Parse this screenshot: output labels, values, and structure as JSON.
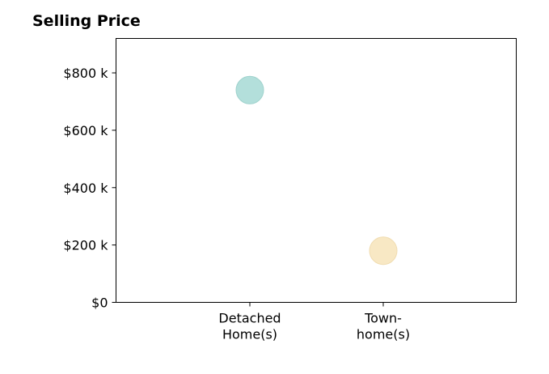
{
  "chart_data": {
    "type": "scatter",
    "title": "Selling Price",
    "xlabel": "",
    "ylabel": "",
    "categories": [
      [
        "Detached",
        "Home(s)"
      ],
      [
        "Town-",
        "home(s)"
      ]
    ],
    "values": [
      740000,
      180000
    ],
    "point_colors": [
      "#b3dfdb",
      "#f8e8c4"
    ],
    "point_stroke_colors": [
      "#9fd2cd",
      "#f0dcb0"
    ],
    "ylim": [
      0,
      920000
    ],
    "yticks": [
      0,
      200000,
      400000,
      600000,
      800000
    ],
    "ytick_labels": [
      "$0",
      "$200 k",
      "$400 k",
      "$600 k",
      "$800 k"
    ],
    "grid": false,
    "legend": false
  }
}
